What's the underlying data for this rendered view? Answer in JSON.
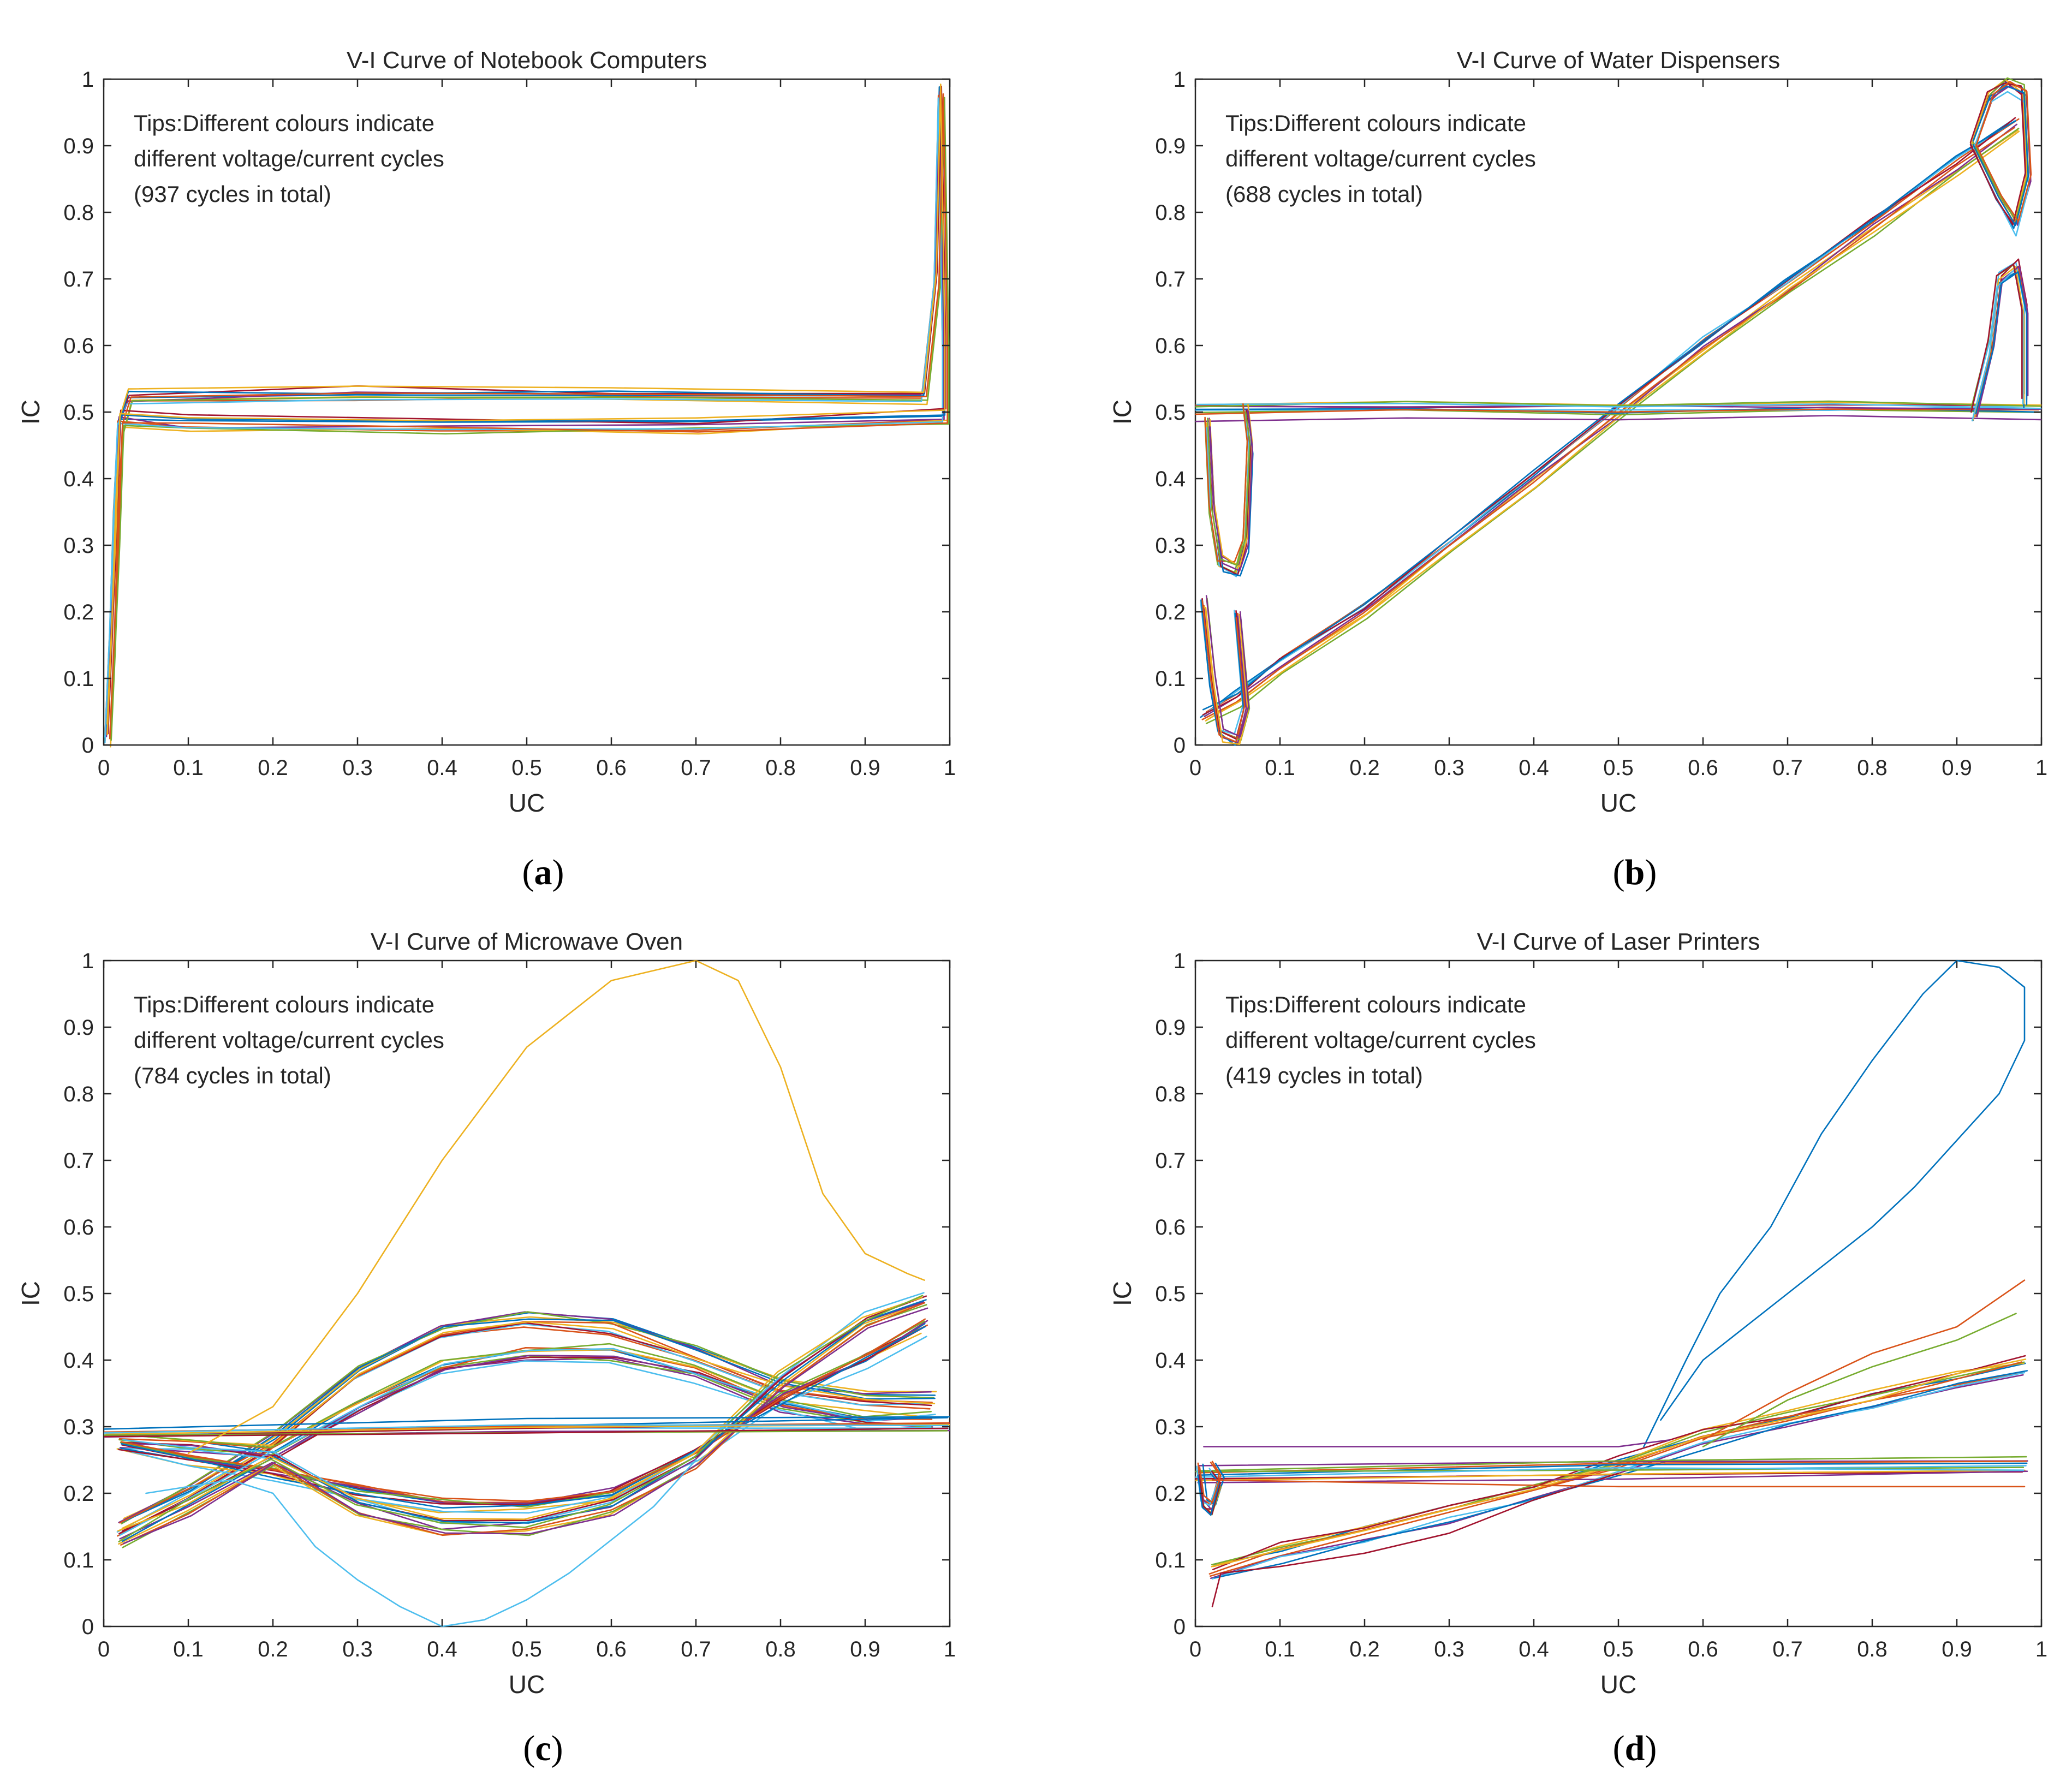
{
  "figure": {
    "note_lines": [
      "Tips:Different colours indicate",
      "different voltage/current cycles"
    ]
  },
  "chart_data": [
    {
      "type": "line",
      "panel_label": "a",
      "title": "V-I Curve of Notebook Computers",
      "xlabel": "UC",
      "ylabel": "IC",
      "xlim": [
        0,
        1
      ],
      "ylim": [
        0,
        1
      ],
      "xticks": [
        "0",
        "0.1",
        "0.2",
        "0.3",
        "0.4",
        "0.5",
        "0.6",
        "0.7",
        "0.8",
        "0.9",
        "1"
      ],
      "yticks": [
        "0",
        "0.1",
        "0.2",
        "0.3",
        "0.4",
        "0.5",
        "0.6",
        "0.7",
        "0.8",
        "0.9",
        "1"
      ],
      "cycles_note": "(937 cycles in total)",
      "bundle_count": 10,
      "colors": [
        "#0072BD",
        "#D95319",
        "#EDB120",
        "#7E2F8E",
        "#77AC30",
        "#4DBEEE",
        "#A2142F"
      ],
      "series": [
        {
          "name": "representative cycle",
          "points": [
            [
              0.005,
              0.01
            ],
            [
              0.01,
              0.15
            ],
            [
              0.015,
              0.35
            ],
            [
              0.02,
              0.48
            ],
            [
              0.03,
              0.52
            ],
            [
              0.3,
              0.525
            ],
            [
              0.6,
              0.523
            ],
            [
              0.97,
              0.52
            ],
            [
              0.985,
              0.7
            ],
            [
              0.99,
              0.98
            ],
            [
              0.995,
              0.6
            ],
            [
              0.995,
              0.49
            ],
            [
              0.7,
              0.478
            ],
            [
              0.4,
              0.478
            ],
            [
              0.1,
              0.48
            ],
            [
              0.02,
              0.49
            ],
            [
              0.015,
              0.3
            ],
            [
              0.005,
              0.02
            ]
          ]
        }
      ]
    },
    {
      "type": "line",
      "panel_label": "b",
      "title": "V-I Curve of Water Dispensers",
      "xlabel": "UC",
      "ylabel": "IC",
      "xlim": [
        0,
        1
      ],
      "ylim": [
        0,
        1
      ],
      "xticks": [
        "0",
        "0.1",
        "0.2",
        "0.3",
        "0.4",
        "0.5",
        "0.6",
        "0.7",
        "0.8",
        "0.9",
        "1"
      ],
      "yticks": [
        "0",
        "0.1",
        "0.2",
        "0.3",
        "0.4",
        "0.5",
        "0.6",
        "0.7",
        "0.8",
        "0.9",
        "1"
      ],
      "cycles_note": "(688 cycles in total)",
      "bundle_count": 10,
      "colors": [
        "#0072BD",
        "#D95319",
        "#EDB120",
        "#7E2F8E",
        "#77AC30",
        "#4DBEEE",
        "#A2142F"
      ],
      "series": [
        {
          "name": "diagonal branch",
          "points": [
            [
              0.01,
              0.04
            ],
            [
              0.05,
              0.07
            ],
            [
              0.1,
              0.12
            ],
            [
              0.2,
              0.2
            ],
            [
              0.3,
              0.3
            ],
            [
              0.4,
              0.4
            ],
            [
              0.5,
              0.5
            ],
            [
              0.6,
              0.6
            ],
            [
              0.7,
              0.69
            ],
            [
              0.8,
              0.78
            ],
            [
              0.9,
              0.87
            ],
            [
              0.97,
              0.93
            ]
          ]
        },
        {
          "name": "horizontal branch",
          "points": [
            [
              0.0,
              0.5
            ],
            [
              0.25,
              0.502
            ],
            [
              0.5,
              0.5
            ],
            [
              0.75,
              0.502
            ],
            [
              1.0,
              0.5
            ]
          ]
        },
        {
          "name": "upper-right loop",
          "points": [
            [
              0.92,
              0.9
            ],
            [
              0.94,
              0.97
            ],
            [
              0.96,
              0.99
            ],
            [
              0.98,
              0.98
            ],
            [
              0.985,
              0.85
            ],
            [
              0.97,
              0.78
            ],
            [
              0.95,
              0.82
            ],
            [
              0.92,
              0.9
            ]
          ]
        },
        {
          "name": "lower-left loop",
          "points": [
            [
              0.015,
              0.48
            ],
            [
              0.02,
              0.35
            ],
            [
              0.03,
              0.27
            ],
            [
              0.05,
              0.26
            ],
            [
              0.06,
              0.3
            ],
            [
              0.065,
              0.45
            ],
            [
              0.06,
              0.5
            ]
          ]
        },
        {
          "name": "right loop",
          "points": [
            [
              0.92,
              0.5
            ],
            [
              0.94,
              0.6
            ],
            [
              0.95,
              0.7
            ],
            [
              0.97,
              0.72
            ],
            [
              0.98,
              0.65
            ],
            [
              0.98,
              0.52
            ]
          ]
        },
        {
          "name": "left bottom loop",
          "points": [
            [
              0.01,
              0.22
            ],
            [
              0.02,
              0.1
            ],
            [
              0.03,
              0.02
            ],
            [
              0.05,
              0.01
            ],
            [
              0.06,
              0.06
            ],
            [
              0.05,
              0.2
            ]
          ]
        }
      ]
    },
    {
      "type": "line",
      "panel_label": "c",
      "title": "V-I Curve of Microwave Oven",
      "xlabel": "UC",
      "ylabel": "IC",
      "xlim": [
        0,
        1
      ],
      "ylim": [
        0,
        1
      ],
      "xticks": [
        "0",
        "0.1",
        "0.2",
        "0.3",
        "0.4",
        "0.5",
        "0.6",
        "0.7",
        "0.8",
        "0.9",
        "1"
      ],
      "yticks": [
        "0",
        "0.1",
        "0.2",
        "0.3",
        "0.4",
        "0.5",
        "0.6",
        "0.7",
        "0.8",
        "0.9",
        "1"
      ],
      "cycles_note": "(784 cycles in total)",
      "bundle_count": 10,
      "colors": [
        "#0072BD",
        "#D95319",
        "#EDB120",
        "#7E2F8E",
        "#77AC30",
        "#4DBEEE",
        "#A2142F"
      ],
      "series": [
        {
          "name": "outer upper arc",
          "points": [
            [
              0.02,
              0.15
            ],
            [
              0.1,
              0.2
            ],
            [
              0.2,
              0.28
            ],
            [
              0.3,
              0.38
            ],
            [
              0.4,
              0.44
            ],
            [
              0.5,
              0.46
            ],
            [
              0.6,
              0.45
            ],
            [
              0.7,
              0.41
            ],
            [
              0.8,
              0.36
            ],
            [
              0.9,
              0.34
            ],
            [
              0.98,
              0.34
            ]
          ]
        },
        {
          "name": "inner upper arc",
          "points": [
            [
              0.02,
              0.28
            ],
            [
              0.1,
              0.27
            ],
            [
              0.2,
              0.26
            ],
            [
              0.3,
              0.33
            ],
            [
              0.4,
              0.39
            ],
            [
              0.5,
              0.41
            ],
            [
              0.6,
              0.41
            ],
            [
              0.7,
              0.38
            ],
            [
              0.8,
              0.33
            ],
            [
              0.9,
              0.31
            ],
            [
              0.98,
              0.31
            ]
          ]
        },
        {
          "name": "inner lower arc",
          "points": [
            [
              0.02,
              0.27
            ],
            [
              0.1,
              0.25
            ],
            [
              0.2,
              0.23
            ],
            [
              0.3,
              0.2
            ],
            [
              0.4,
              0.18
            ],
            [
              0.5,
              0.18
            ],
            [
              0.6,
              0.2
            ],
            [
              0.7,
              0.26
            ],
            [
              0.8,
              0.34
            ],
            [
              0.9,
              0.4
            ],
            [
              0.97,
              0.45
            ]
          ]
        },
        {
          "name": "outer lower arc",
          "points": [
            [
              0.02,
              0.13
            ],
            [
              0.1,
              0.18
            ],
            [
              0.2,
              0.25
            ],
            [
              0.3,
              0.18
            ],
            [
              0.4,
              0.15
            ],
            [
              0.5,
              0.15
            ],
            [
              0.6,
              0.18
            ],
            [
              0.7,
              0.25
            ],
            [
              0.8,
              0.37
            ],
            [
              0.9,
              0.46
            ],
            [
              0.97,
              0.49
            ]
          ]
        },
        {
          "name": "horizontal band",
          "points": [
            [
              0.0,
              0.29
            ],
            [
              0.5,
              0.3
            ],
            [
              1.0,
              0.305
            ]
          ]
        },
        {
          "name": "outlier high cycle",
          "color": "#EDB120",
          "points": [
            [
              0.1,
              0.26
            ],
            [
              0.2,
              0.33
            ],
            [
              0.3,
              0.5
            ],
            [
              0.35,
              0.6
            ],
            [
              0.4,
              0.7
            ],
            [
              0.5,
              0.87
            ],
            [
              0.6,
              0.97
            ],
            [
              0.7,
              1.0
            ],
            [
              0.75,
              0.97
            ],
            [
              0.8,
              0.84
            ],
            [
              0.85,
              0.65
            ],
            [
              0.9,
              0.56
            ],
            [
              0.95,
              0.53
            ],
            [
              0.97,
              0.52
            ]
          ]
        },
        {
          "name": "outlier low cycle",
          "color": "#4DBEEE",
          "points": [
            [
              0.05,
              0.2
            ],
            [
              0.15,
              0.22
            ],
            [
              0.2,
              0.2
            ],
            [
              0.25,
              0.12
            ],
            [
              0.3,
              0.07
            ],
            [
              0.35,
              0.03
            ],
            [
              0.4,
              0.0
            ],
            [
              0.45,
              0.01
            ],
            [
              0.5,
              0.04
            ],
            [
              0.55,
              0.08
            ],
            [
              0.6,
              0.13
            ],
            [
              0.65,
              0.18
            ],
            [
              0.7,
              0.25
            ]
          ]
        }
      ]
    },
    {
      "type": "line",
      "panel_label": "d",
      "title": "V-I Curve of Laser Printers",
      "xlabel": "UC",
      "ylabel": "IC",
      "xlim": [
        0,
        1
      ],
      "ylim": [
        0,
        1
      ],
      "xticks": [
        "0",
        "0.1",
        "0.2",
        "0.3",
        "0.4",
        "0.5",
        "0.6",
        "0.7",
        "0.8",
        "0.9",
        "1"
      ],
      "yticks": [
        "0",
        "0.1",
        "0.2",
        "0.3",
        "0.4",
        "0.5",
        "0.6",
        "0.7",
        "0.8",
        "0.9",
        "1"
      ],
      "cycles_note": "(419 cycles in total)",
      "bundle_count": 10,
      "colors": [
        "#0072BD",
        "#D95319",
        "#EDB120",
        "#7E2F8E",
        "#77AC30",
        "#4DBEEE",
        "#A2142F"
      ],
      "series": [
        {
          "name": "main rising branch",
          "points": [
            [
              0.02,
              0.08
            ],
            [
              0.1,
              0.11
            ],
            [
              0.2,
              0.14
            ],
            [
              0.3,
              0.17
            ],
            [
              0.4,
              0.2
            ],
            [
              0.5,
              0.24
            ],
            [
              0.6,
              0.28
            ],
            [
              0.7,
              0.31
            ],
            [
              0.8,
              0.34
            ],
            [
              0.9,
              0.37
            ],
            [
              0.98,
              0.39
            ]
          ]
        },
        {
          "name": "horizontal band",
          "points": [
            [
              0.0,
              0.23
            ],
            [
              0.5,
              0.235
            ],
            [
              0.98,
              0.24
            ]
          ]
        },
        {
          "name": "left loop",
          "points": [
            [
              0.005,
              0.24
            ],
            [
              0.01,
              0.19
            ],
            [
              0.02,
              0.18
            ],
            [
              0.03,
              0.22
            ],
            [
              0.02,
              0.24
            ]
          ]
        },
        {
          "name": "outlier high cycle",
          "color": "#0072BD",
          "points": [
            [
              0.53,
              0.27
            ],
            [
              0.58,
              0.4
            ],
            [
              0.62,
              0.5
            ],
            [
              0.68,
              0.6
            ],
            [
              0.74,
              0.74
            ],
            [
              0.8,
              0.85
            ],
            [
              0.86,
              0.95
            ],
            [
              0.9,
              1.0
            ],
            [
              0.95,
              0.99
            ],
            [
              0.98,
              0.96
            ],
            [
              0.98,
              0.88
            ],
            [
              0.95,
              0.8
            ],
            [
              0.9,
              0.73
            ],
            [
              0.85,
              0.66
            ],
            [
              0.8,
              0.6
            ],
            [
              0.75,
              0.55
            ],
            [
              0.7,
              0.5
            ],
            [
              0.65,
              0.45
            ],
            [
              0.6,
              0.4
            ],
            [
              0.55,
              0.31
            ]
          ]
        },
        {
          "name": "upper side branch",
          "color": "#D95319",
          "points": [
            [
              0.6,
              0.28
            ],
            [
              0.7,
              0.35
            ],
            [
              0.8,
              0.41
            ],
            [
              0.9,
              0.45
            ],
            [
              0.98,
              0.52
            ]
          ]
        },
        {
          "name": "side branch green",
          "color": "#77AC30",
          "points": [
            [
              0.6,
              0.27
            ],
            [
              0.7,
              0.34
            ],
            [
              0.8,
              0.39
            ],
            [
              0.9,
              0.43
            ],
            [
              0.97,
              0.47
            ]
          ]
        },
        {
          "name": "low flat cycle",
          "color": "#D95319",
          "points": [
            [
              0.02,
              0.22
            ],
            [
              0.5,
              0.21
            ],
            [
              0.98,
              0.21
            ]
          ]
        },
        {
          "name": "high flat cycle",
          "color": "#7E2F8E",
          "points": [
            [
              0.01,
              0.27
            ],
            [
              0.5,
              0.27
            ],
            [
              0.56,
              0.28
            ]
          ]
        },
        {
          "name": "lower dark branch",
          "color": "#A2142F",
          "points": [
            [
              0.02,
              0.03
            ],
            [
              0.03,
              0.08
            ],
            [
              0.1,
              0.09
            ],
            [
              0.2,
              0.11
            ],
            [
              0.3,
              0.14
            ],
            [
              0.4,
              0.19
            ],
            [
              0.5,
              0.23
            ]
          ]
        }
      ]
    }
  ]
}
